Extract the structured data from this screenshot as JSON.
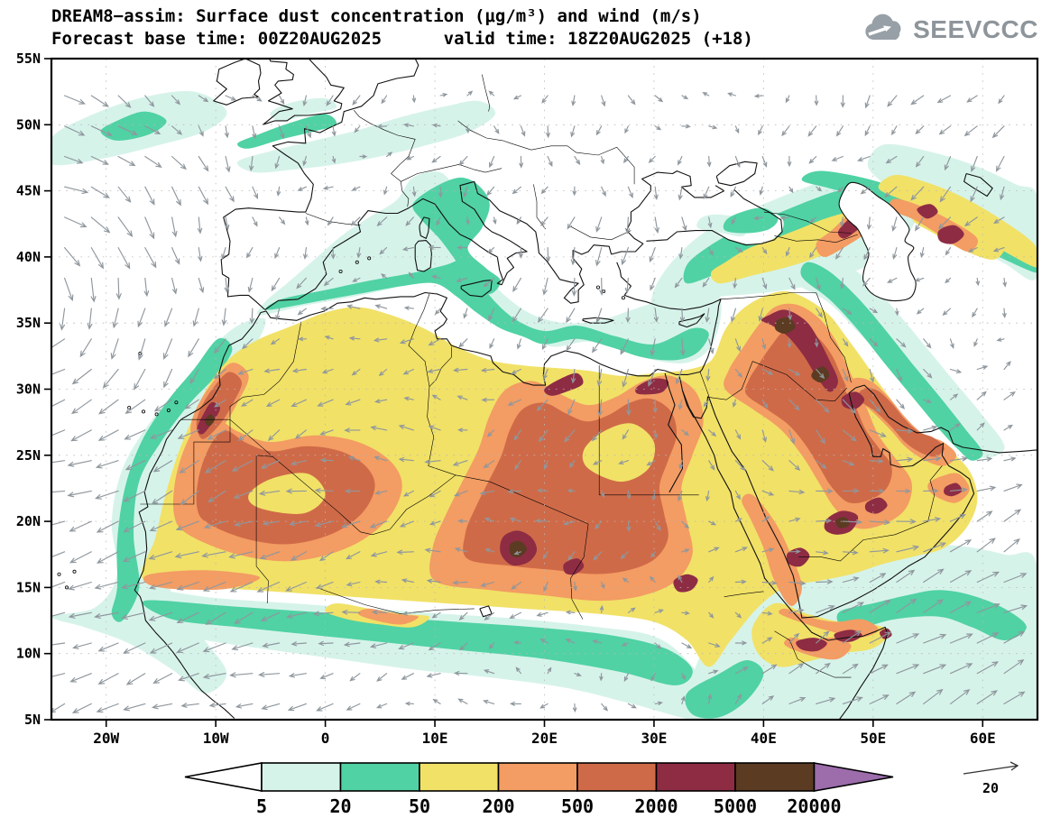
{
  "header": {
    "title_line1": "DREAM8−assim: Surface dust concentration (μg/m³) and wind (m/s)",
    "title_line2": "Forecast base time: 00Z20AUG2025      valid time: 18Z20AUG2025 (+18)",
    "logo_text": "SEEVCCC"
  },
  "axes": {
    "lat_labels": [
      "55N",
      "50N",
      "45N",
      "40N",
      "35N",
      "30N",
      "25N",
      "20N",
      "15N",
      "10N",
      "5N"
    ],
    "lon_labels": [
      "20W",
      "10W",
      "0",
      "10E",
      "20E",
      "30E",
      "40E",
      "50E",
      "60E"
    ]
  },
  "legend": {
    "tick_labels": [
      "5",
      "20",
      "50",
      "200",
      "500",
      "2000",
      "5000",
      "20000"
    ],
    "segment_colors": [
      "#ffffff",
      "#d6f3ea",
      "#50d2a4",
      "#f1e167",
      "#f39c63",
      "#cf6a48",
      "#8e2c44",
      "#5b3b22",
      "#9c6cab"
    ]
  },
  "wind_reference": {
    "label": "20"
  },
  "chart_data": {
    "type": "heatmap",
    "model": "DREAM8-assim",
    "variable": "Surface dust concentration",
    "units": "μg/m³",
    "wind_units": "m/s",
    "forecast_base_time": "00Z20AUG2025",
    "valid_time": "18Z20AUG2025",
    "lead_time_label": "(+18)",
    "contour_levels": [
      5,
      20,
      50,
      200,
      500,
      2000,
      5000,
      20000
    ],
    "below_min_color": "#ffffff",
    "level_colors": [
      "#d6f3ea",
      "#50d2a4",
      "#f1e167",
      "#f39c63",
      "#cf6a48",
      "#8e2c44",
      "#5b3b22",
      "#9c6cab"
    ],
    "wind_reference_speed": 20,
    "lat_ticks": [
      "5N",
      "10N",
      "15N",
      "20N",
      "25N",
      "30N",
      "35N",
      "40N",
      "45N",
      "50N",
      "55N"
    ],
    "lon_ticks": [
      "20W",
      "10W",
      "0",
      "10E",
      "20E",
      "30E",
      "40E",
      "50E",
      "60E"
    ],
    "legend_position": "bottom",
    "source": "SEEVCCC"
  }
}
